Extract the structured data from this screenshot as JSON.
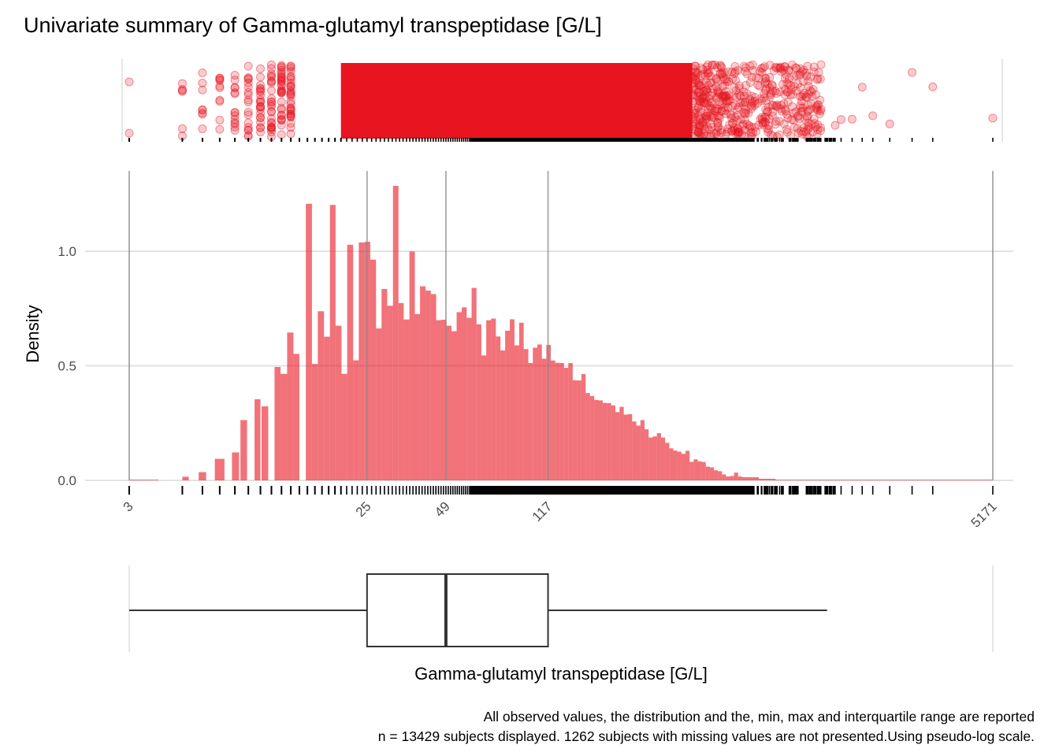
{
  "chart_data": {
    "type": "histogram",
    "title": "Univariate summary of Gamma-glutamyl transpeptidase [G/L]",
    "xlabel": "Gamma-glutamyl transpeptidase [G/L]",
    "ylabel": "Density",
    "x_scale": "pseudo-log",
    "x_ticks": [
      3,
      25,
      49,
      117,
      5171
    ],
    "x_range": [
      3,
      5171
    ],
    "y_ticks": [
      0.0,
      0.5,
      1.0
    ],
    "y_tick_labels": [
      "0.0",
      "0.5",
      "1.0"
    ],
    "ylim": [
      0,
      1.3
    ],
    "grid": true,
    "bar_color": "#E8141F",
    "point_color": "#E8141F",
    "summary": {
      "min": 3,
      "q1": 25,
      "median": 49,
      "q3": 117,
      "max": 5171,
      "whisker_high": 1260
    },
    "caption_line1": "All observed values, the distribution and the, min, max and interquartile range are reported",
    "caption_line2": "n = 13429 subjects displayed. 1262 subjects with missing values are not presented.Using pseudo-log scale.",
    "bins": [
      {
        "x0": 3.0,
        "x1": 4.0,
        "density": 0.0
      },
      {
        "x0": 5.0,
        "x1": 5.3,
        "density": 0.016
      },
      {
        "x0": 5.8,
        "x1": 6.2,
        "density": 0.036
      },
      {
        "x0": 6.7,
        "x1": 7.3,
        "density": 0.094
      },
      {
        "x0": 7.8,
        "x1": 8.3,
        "density": 0.122
      },
      {
        "x0": 8.4,
        "x1": 8.9,
        "density": 0.263
      },
      {
        "x0": 9.5,
        "x1": 10.0,
        "density": 0.354
      },
      {
        "x0": 10.1,
        "x1": 10.7,
        "density": 0.323
      },
      {
        "x0": 11.3,
        "x1": 11.9,
        "density": 0.495
      },
      {
        "x0": 11.9,
        "x1": 12.6,
        "density": 0.465
      },
      {
        "x0": 12.6,
        "x1": 13.3,
        "density": 0.645
      },
      {
        "x0": 13.3,
        "x1": 14.0,
        "density": 0.552
      },
      {
        "x0": 14.8,
        "x1": 15.6,
        "density": 1.207
      },
      {
        "x0": 15.6,
        "x1": 16.4,
        "density": 0.508
      },
      {
        "x0": 16.4,
        "x1": 17.3,
        "density": 0.738
      },
      {
        "x0": 17.3,
        "x1": 18.2,
        "density": 0.627
      },
      {
        "x0": 18.2,
        "x1": 19.1,
        "density": 1.202
      },
      {
        "x0": 19.1,
        "x1": 20.1,
        "density": 0.675
      },
      {
        "x0": 20.1,
        "x1": 21.1,
        "density": 0.465
      },
      {
        "x0": 21.1,
        "x1": 22.2,
        "density": 1.028
      },
      {
        "x0": 22.2,
        "x1": 23.3,
        "density": 0.524
      },
      {
        "x0": 23.3,
        "x1": 24.5,
        "density": 1.038
      },
      {
        "x0": 24.5,
        "x1": 25.7,
        "density": 1.041
      },
      {
        "x0": 25.7,
        "x1": 27.0,
        "density": 0.963
      },
      {
        "x0": 27.0,
        "x1": 28.3,
        "density": 0.663
      },
      {
        "x0": 28.3,
        "x1": 29.7,
        "density": 0.835
      },
      {
        "x0": 29.7,
        "x1": 31.2,
        "density": 0.762
      },
      {
        "x0": 31.2,
        "x1": 32.7,
        "density": 1.285
      },
      {
        "x0": 32.7,
        "x1": 34.2,
        "density": 0.774
      },
      {
        "x0": 34.2,
        "x1": 35.9,
        "density": 0.702
      },
      {
        "x0": 35.9,
        "x1": 37.6,
        "density": 0.999
      },
      {
        "x0": 37.6,
        "x1": 39.3,
        "density": 0.726
      },
      {
        "x0": 39.3,
        "x1": 41.2,
        "density": 0.847
      },
      {
        "x0": 41.2,
        "x1": 43.1,
        "density": 0.828
      },
      {
        "x0": 43.1,
        "x1": 45.1,
        "density": 0.813
      },
      {
        "x0": 45.1,
        "x1": 47.1,
        "density": 0.699
      },
      {
        "x0": 47.1,
        "x1": 49.2,
        "density": 0.701
      },
      {
        "x0": 49.2,
        "x1": 51.4,
        "density": 0.675
      },
      {
        "x0": 51.4,
        "x1": 53.7,
        "density": 0.651
      },
      {
        "x0": 53.7,
        "x1": 56.1,
        "density": 0.734
      },
      {
        "x0": 56.1,
        "x1": 58.5,
        "density": 0.755
      },
      {
        "x0": 58.5,
        "x1": 61.0,
        "density": 0.709
      },
      {
        "x0": 61.0,
        "x1": 63.6,
        "density": 0.84
      },
      {
        "x0": 63.6,
        "x1": 66.3,
        "density": 0.681
      },
      {
        "x0": 66.3,
        "x1": 69.1,
        "density": 0.545
      },
      {
        "x0": 69.1,
        "x1": 72.0,
        "density": 0.699
      },
      {
        "x0": 72.0,
        "x1": 75.0,
        "density": 0.706
      },
      {
        "x0": 75.0,
        "x1": 78.0,
        "density": 0.628
      },
      {
        "x0": 78.0,
        "x1": 81.2,
        "density": 0.567
      },
      {
        "x0": 81.2,
        "x1": 84.5,
        "density": 0.653
      },
      {
        "x0": 84.5,
        "x1": 87.9,
        "density": 0.703
      },
      {
        "x0": 87.9,
        "x1": 91.5,
        "density": 0.589
      },
      {
        "x0": 91.5,
        "x1": 95.1,
        "density": 0.688
      },
      {
        "x0": 95.1,
        "x1": 98.9,
        "density": 0.573
      },
      {
        "x0": 98.9,
        "x1": 102.8,
        "density": 0.512
      },
      {
        "x0": 102.8,
        "x1": 106.8,
        "density": 0.579
      },
      {
        "x0": 106.8,
        "x1": 111.0,
        "density": 0.593
      },
      {
        "x0": 111.0,
        "x1": 115.3,
        "density": 0.531
      },
      {
        "x0": 115.3,
        "x1": 119.8,
        "density": 0.591
      },
      {
        "x0": 119.8,
        "x1": 124.4,
        "density": 0.523
      },
      {
        "x0": 124.4,
        "x1": 129.1,
        "density": 0.513
      },
      {
        "x0": 129.1,
        "x1": 134.0,
        "density": 0.512
      },
      {
        "x0": 134.0,
        "x1": 139.1,
        "density": 0.491
      },
      {
        "x0": 139.1,
        "x1": 144.4,
        "density": 0.512
      },
      {
        "x0": 144.4,
        "x1": 149.8,
        "density": 0.437
      },
      {
        "x0": 149.8,
        "x1": 155.4,
        "density": 0.436
      },
      {
        "x0": 155.4,
        "x1": 161.2,
        "density": 0.464
      },
      {
        "x0": 161.2,
        "x1": 167.2,
        "density": 0.381
      },
      {
        "x0": 167.2,
        "x1": 173.4,
        "density": 0.368
      },
      {
        "x0": 173.4,
        "x1": 179.8,
        "density": 0.351
      },
      {
        "x0": 179.8,
        "x1": 186.4,
        "density": 0.349
      },
      {
        "x0": 186.4,
        "x1": 193.2,
        "density": 0.338
      },
      {
        "x0": 193.2,
        "x1": 200.3,
        "density": 0.337
      },
      {
        "x0": 200.3,
        "x1": 207.6,
        "density": 0.327
      },
      {
        "x0": 207.6,
        "x1": 215.2,
        "density": 0.298
      },
      {
        "x0": 215.2,
        "x1": 223.0,
        "density": 0.321
      },
      {
        "x0": 223.0,
        "x1": 231.1,
        "density": 0.287
      },
      {
        "x0": 231.1,
        "x1": 239.4,
        "density": 0.289
      },
      {
        "x0": 239.4,
        "x1": 248.1,
        "density": 0.257
      },
      {
        "x0": 248.1,
        "x1": 257.0,
        "density": 0.239
      },
      {
        "x0": 257.0,
        "x1": 266.2,
        "density": 0.263
      },
      {
        "x0": 266.2,
        "x1": 275.7,
        "density": 0.223
      },
      {
        "x0": 275.7,
        "x1": 285.6,
        "density": 0.187
      },
      {
        "x0": 285.6,
        "x1": 295.8,
        "density": 0.192
      },
      {
        "x0": 295.8,
        "x1": 306.3,
        "density": 0.206
      },
      {
        "x0": 306.3,
        "x1": 317.2,
        "density": 0.187
      },
      {
        "x0": 317.2,
        "x1": 328.5,
        "density": 0.164
      },
      {
        "x0": 328.5,
        "x1": 340.1,
        "density": 0.14
      },
      {
        "x0": 340.1,
        "x1": 352.1,
        "density": 0.13
      },
      {
        "x0": 352.1,
        "x1": 364.6,
        "density": 0.125
      },
      {
        "x0": 364.6,
        "x1": 377.4,
        "density": 0.116
      },
      {
        "x0": 377.4,
        "x1": 390.7,
        "density": 0.129
      },
      {
        "x0": 390.7,
        "x1": 404.5,
        "density": 0.081
      },
      {
        "x0": 404.5,
        "x1": 418.7,
        "density": 0.092
      },
      {
        "x0": 418.7,
        "x1": 433.4,
        "density": 0.083
      },
      {
        "x0": 433.4,
        "x1": 448.6,
        "density": 0.08
      },
      {
        "x0": 448.6,
        "x1": 464.3,
        "density": 0.06
      },
      {
        "x0": 464.3,
        "x1": 480.6,
        "density": 0.057
      },
      {
        "x0": 480.6,
        "x1": 497.4,
        "density": 0.044
      },
      {
        "x0": 497.4,
        "x1": 514.8,
        "density": 0.04
      },
      {
        "x0": 514.8,
        "x1": 532.8,
        "density": 0.026
      },
      {
        "x0": 532.8,
        "x1": 551.4,
        "density": 0.017
      },
      {
        "x0": 551.4,
        "x1": 570.6,
        "density": 0.019
      },
      {
        "x0": 570.6,
        "x1": 590.5,
        "density": 0.034
      },
      {
        "x0": 590.5,
        "x1": 611.1,
        "density": 0.017
      },
      {
        "x0": 611.1,
        "x1": 705.0,
        "density": 0.014
      },
      {
        "x0": 705.0,
        "x1": 813.0,
        "density": 0.007
      },
      {
        "x0": 813.0,
        "x1": 5171.0,
        "density": 0.0
      }
    ]
  }
}
